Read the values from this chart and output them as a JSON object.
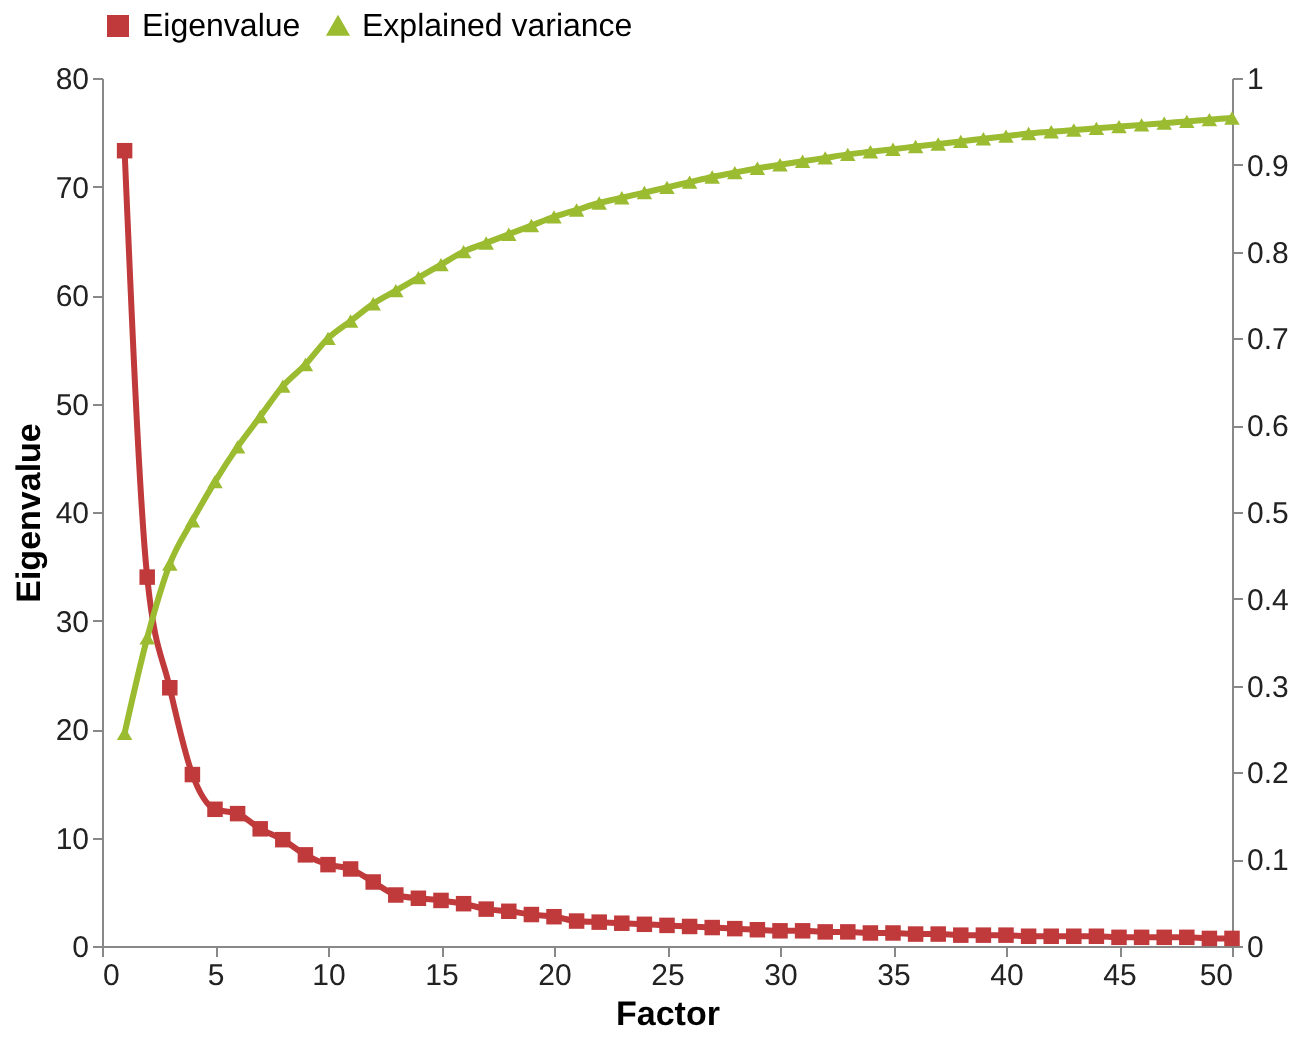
{
  "chart_data": {
    "type": "line",
    "xlabel": "Factor",
    "ylabel": "Eigenvalue",
    "x": [
      1,
      2,
      3,
      4,
      5,
      6,
      7,
      8,
      9,
      10,
      11,
      12,
      13,
      14,
      15,
      16,
      17,
      18,
      19,
      20,
      21,
      22,
      23,
      24,
      25,
      26,
      27,
      28,
      29,
      30,
      31,
      32,
      33,
      34,
      35,
      36,
      37,
      38,
      39,
      40,
      41,
      42,
      43,
      44,
      45,
      46,
      47,
      48,
      49,
      50
    ],
    "series": [
      {
        "name": "Eigenvalue",
        "color": "#c0393b",
        "marker": "square",
        "values": [
          73.3,
          34,
          23.8,
          15.8,
          12.6,
          12.2,
          10.8,
          9.8,
          8.4,
          7.5,
          7.1,
          5.9,
          4.7,
          4.4,
          4.2,
          3.9,
          3.4,
          3.2,
          2.9,
          2.7,
          2.3,
          2.2,
          2.1,
          2.0,
          1.9,
          1.8,
          1.7,
          1.6,
          1.5,
          1.4,
          1.4,
          1.3,
          1.3,
          1.2,
          1.2,
          1.1,
          1.1,
          1.0,
          1.0,
          1.0,
          0.9,
          0.9,
          0.9,
          0.9,
          0.8,
          0.8,
          0.8,
          0.8,
          0.7,
          0.7
        ]
      },
      {
        "name": "Explained variance",
        "color": "#9bbb31",
        "marker": "triangle",
        "axis": "y2",
        "values": [
          0.245,
          0.355,
          0.44,
          0.49,
          0.535,
          0.575,
          0.61,
          0.645,
          0.67,
          0.7,
          0.72,
          0.74,
          0.755,
          0.77,
          0.785,
          0.8,
          0.81,
          0.82,
          0.83,
          0.84,
          0.848,
          0.856,
          0.862,
          0.868,
          0.874,
          0.88,
          0.886,
          0.891,
          0.896,
          0.9,
          0.904,
          0.908,
          0.912,
          0.915,
          0.918,
          0.921,
          0.924,
          0.927,
          0.93,
          0.933,
          0.936,
          0.938,
          0.94,
          0.942,
          0.944,
          0.946,
          0.948,
          0.95,
          0.952,
          0.954
        ]
      }
    ],
    "xlim": [
      0,
      50
    ],
    "xticks": [
      0,
      5,
      10,
      15,
      20,
      25,
      30,
      35,
      40,
      45,
      50
    ],
    "ylim": [
      0,
      80
    ],
    "yticks": [
      0,
      10,
      20,
      30,
      40,
      50,
      60,
      70,
      80
    ],
    "y2lim": [
      0,
      1
    ],
    "y2ticks": [
      0,
      0.1,
      0.2,
      0.3,
      0.4,
      0.5,
      0.6,
      0.7,
      0.8,
      0.9,
      1
    ],
    "grid": false,
    "legend": "top",
    "line_style": "solid"
  }
}
